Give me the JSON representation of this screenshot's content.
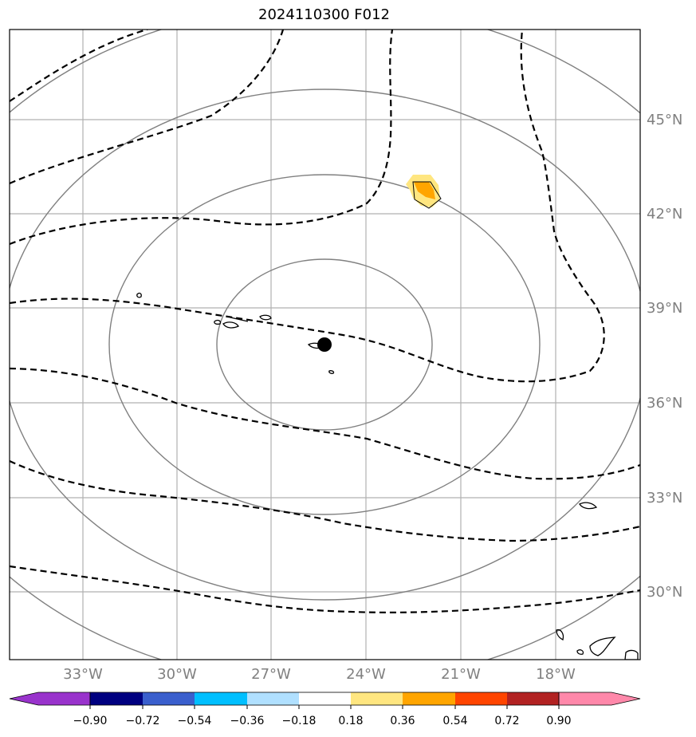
{
  "title": "2024110300 F012",
  "map": {
    "lon_labels": [
      "33°W",
      "30°W",
      "27°W",
      "24°W",
      "21°W",
      "18°W"
    ],
    "lat_labels": [
      "45°N",
      "42°N",
      "39°N",
      "36°N",
      "33°N",
      "30°N"
    ],
    "grid": true,
    "center_marker": "storm-center-dot",
    "features": [
      "range-rings",
      "dashed-contours",
      "coastlines",
      "shaded-anomaly"
    ]
  },
  "colorbar": {
    "tick_labels": [
      "−0.90",
      "−0.72",
      "−0.54",
      "−0.36",
      "−0.18",
      "0.18",
      "0.36",
      "0.54",
      "0.72",
      "0.90"
    ],
    "colors": [
      "#9933cc",
      "#000080",
      "#3a5fcd",
      "#00bfff",
      "#b0e0ff",
      "#ffffff",
      "#ffe680",
      "#ffa500",
      "#ff4500",
      "#b22222",
      "#ff88aa"
    ],
    "extend": "both"
  },
  "shade_colors": {
    "outer": "#ffe680",
    "inner": "#ffa500"
  },
  "line_colors": {
    "grid": "#b0b0b0",
    "rings": "#808080",
    "contours": "#000000"
  }
}
